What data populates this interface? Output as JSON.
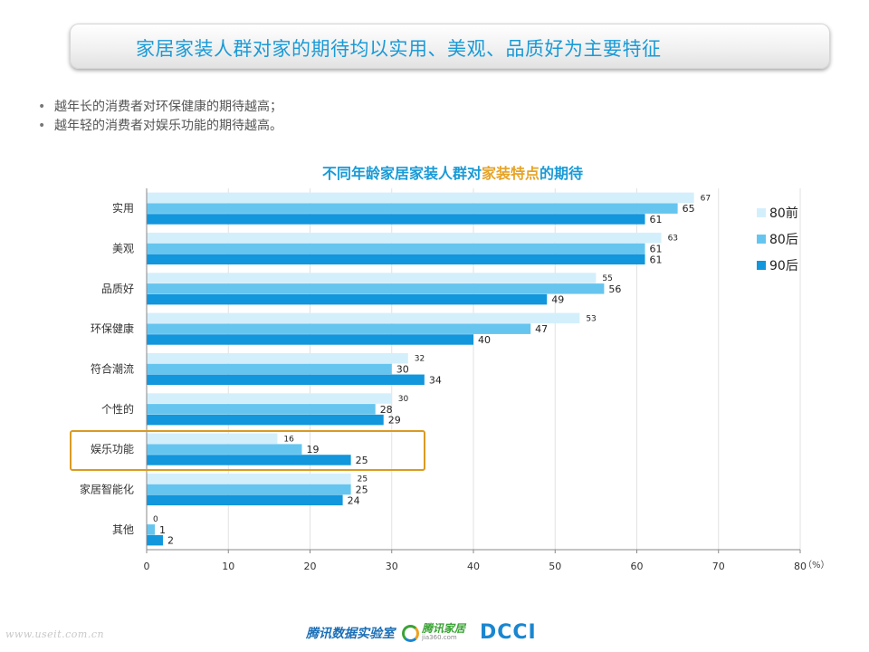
{
  "header": {
    "title": "家居家装人群对家的期待均以实用、美观、品质好为主要特征"
  },
  "bullets": [
    "越年长的消费者对环保健康的期待越高；",
    "越年轻的消费者对娱乐功能的期待越高。"
  ],
  "chart_title": {
    "part1": "不同年龄家居家装人群对",
    "highlight": "家装特点",
    "part2": "的期待"
  },
  "chart_data": {
    "type": "bar",
    "orientation": "horizontal",
    "categories": [
      "实用",
      "美观",
      "品质好",
      "环保健康",
      "符合潮流",
      "个性的",
      "娱乐功能",
      "家居智能化",
      "其他"
    ],
    "series": [
      {
        "name": "80前",
        "color": "#d3effb",
        "values": [
          67,
          63,
          55,
          53,
          32,
          30,
          16,
          25,
          0
        ]
      },
      {
        "name": "80后",
        "color": "#66c5ef",
        "values": [
          65,
          61,
          56,
          47,
          30,
          28,
          19,
          25,
          1
        ]
      },
      {
        "name": "90后",
        "color": "#1296dc",
        "values": [
          61,
          61,
          49,
          40,
          34,
          29,
          25,
          24,
          2
        ]
      }
    ],
    "xlim": [
      0,
      80
    ],
    "xticks": [
      0,
      10,
      20,
      30,
      40,
      50,
      60,
      70,
      80
    ],
    "unit_label": "（%）",
    "grid": true,
    "legend_position": "right",
    "highlighted_category": "娱乐功能",
    "highlight_color": "#d99b22"
  },
  "footer": {
    "watermark": "www.useit.com.cn",
    "brand": "腾讯数据实验室",
    "logo2_main": "腾讯家居",
    "logo2_sub": "jia360.com",
    "logo3": "DCCI"
  }
}
